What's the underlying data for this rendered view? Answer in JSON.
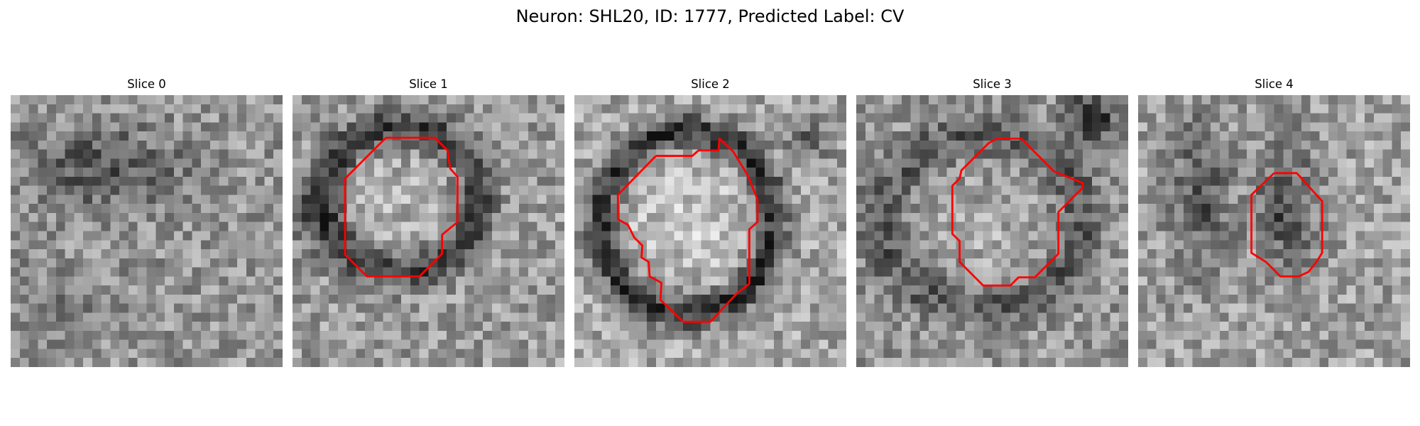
{
  "figure": {
    "title": "Neuron: SHL20, ID: 1777, Predicted Label: CV",
    "contour_color": "#ff0000"
  },
  "slices": [
    {
      "title": "Slice 0",
      "has_contour": false
    },
    {
      "title": "Slice 1",
      "has_contour": true
    },
    {
      "title": "Slice 2",
      "has_contour": true
    },
    {
      "title": "Slice 3",
      "has_contour": true
    },
    {
      "title": "Slice 4",
      "has_contour": true
    }
  ]
}
